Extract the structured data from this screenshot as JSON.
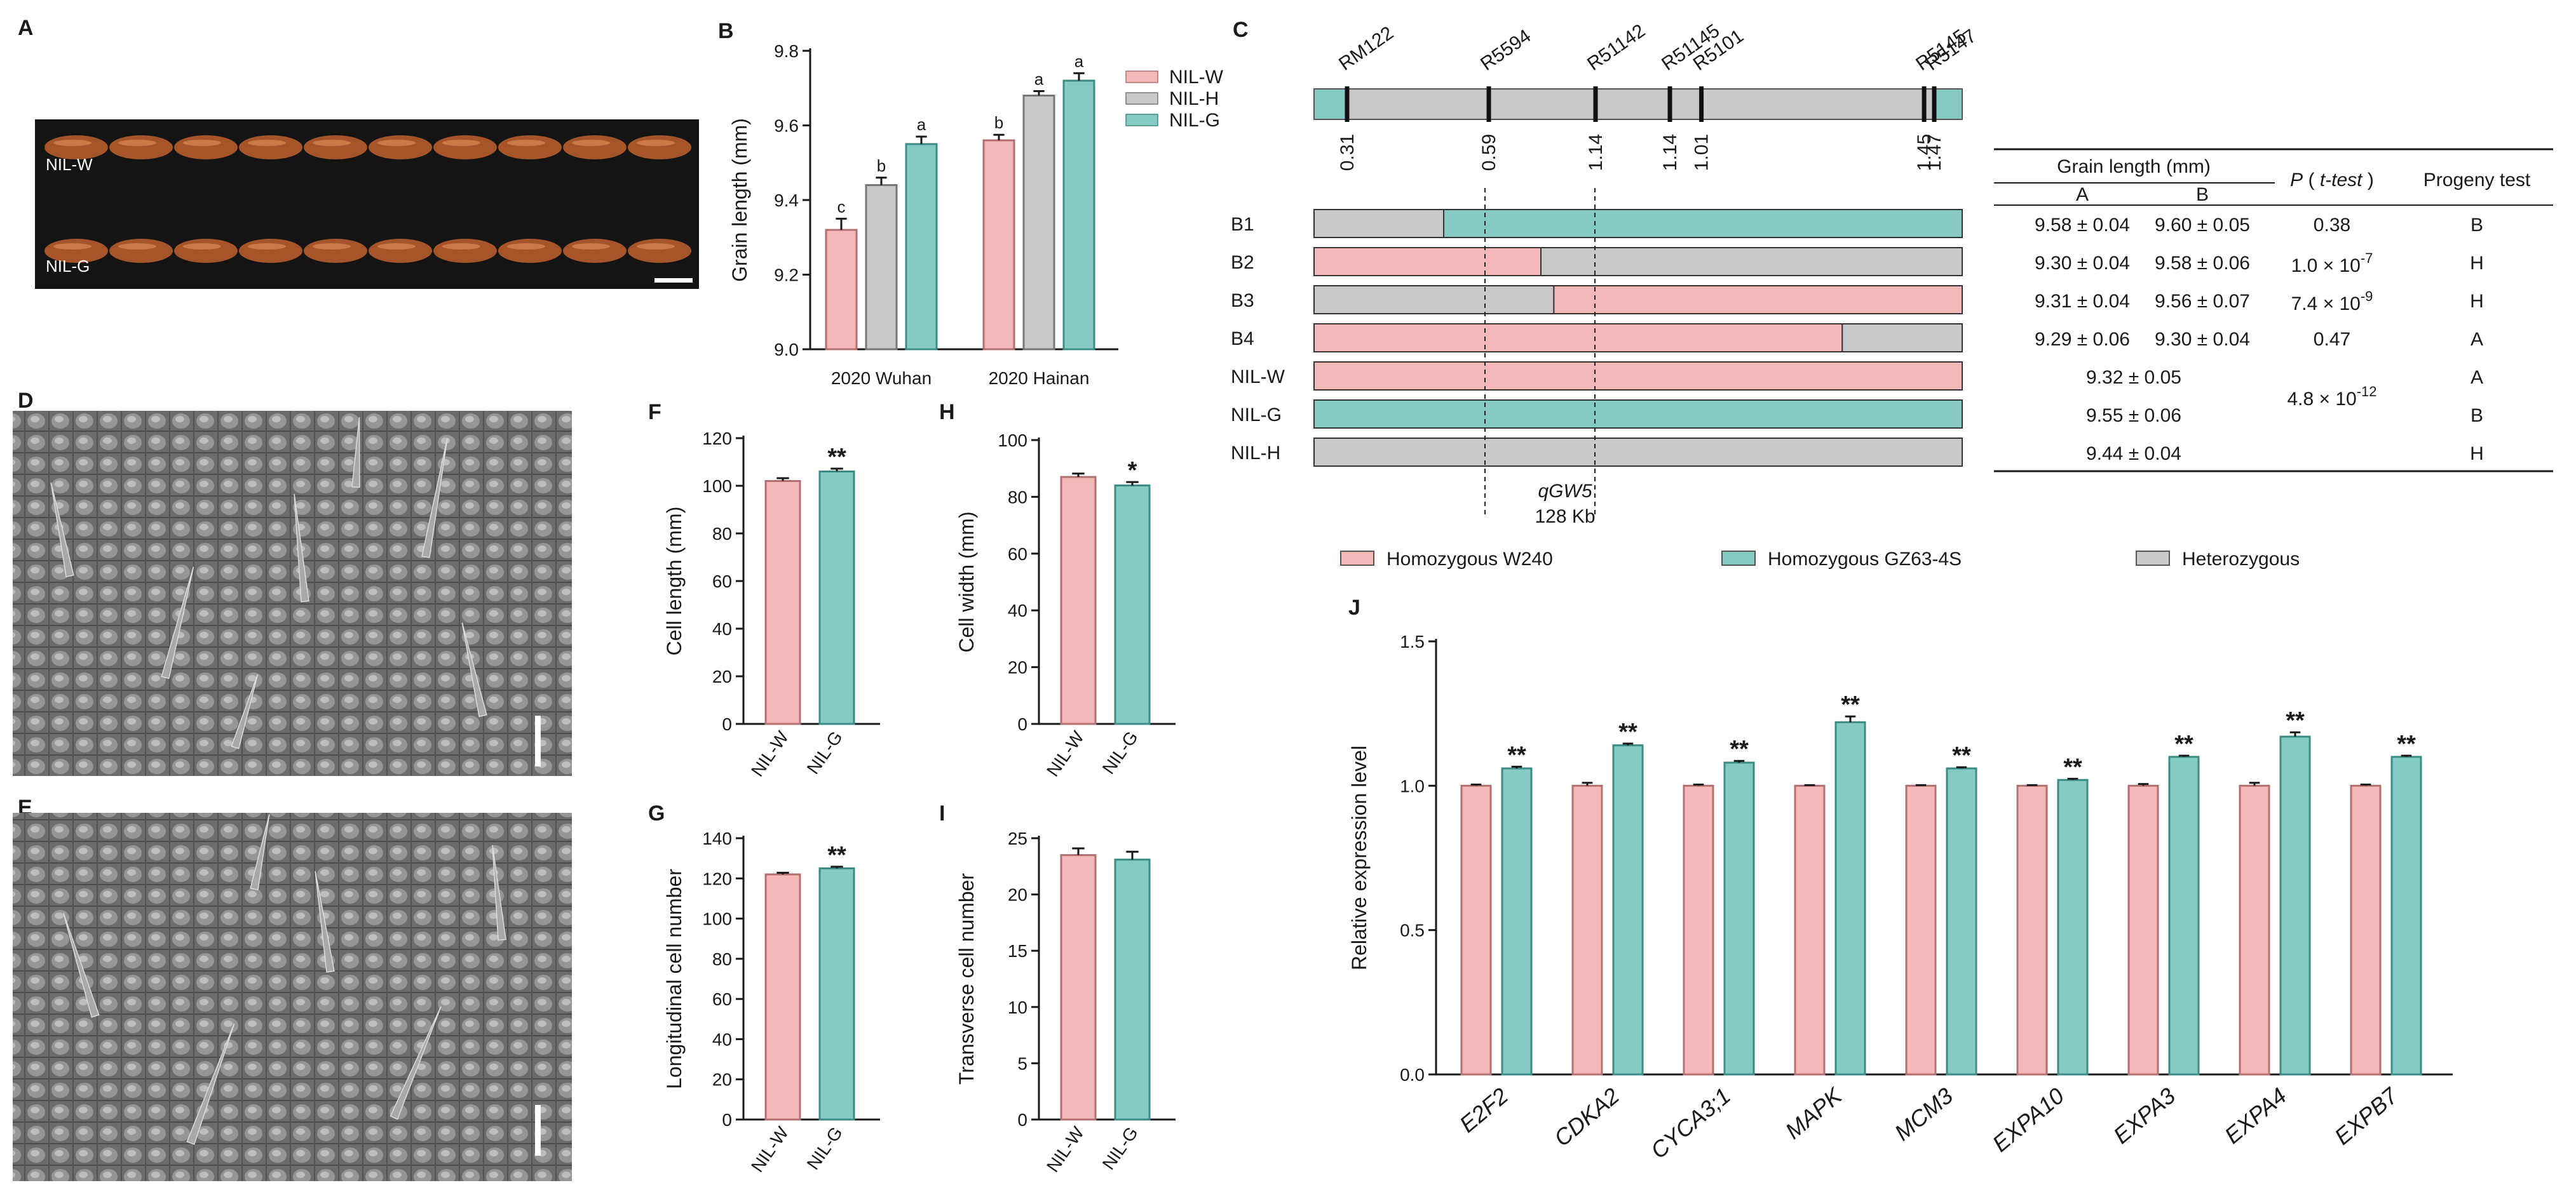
{
  "colors": {
    "pink": "#f5b8b8",
    "teal": "#86cbc3",
    "grey": "#c9c9c9",
    "photo_bg": "#141414",
    "grain": "#a6552a",
    "sem": "#6e6e6e"
  },
  "panel_letters": {
    "A": "A",
    "B": "B",
    "C": "C",
    "D": "D",
    "E": "E",
    "F": "F",
    "G": "G",
    "H": "H",
    "I": "I",
    "J": "J"
  },
  "panel_a": {
    "label_top": "NIL-W",
    "label_bottom": "NIL-G"
  },
  "chart_data": [
    {
      "id": "B",
      "type": "bar",
      "title": "",
      "categories": [
        "2020 Wuhan",
        "2020 Hainan"
      ],
      "series": [
        {
          "name": "NIL-W",
          "values": [
            9.32,
            9.56
          ],
          "errors": [
            0.03,
            0.015
          ],
          "letters": [
            "c",
            "b"
          ]
        },
        {
          "name": "NIL-H",
          "values": [
            9.44,
            9.68
          ],
          "errors": [
            0.02,
            0.012
          ],
          "letters": [
            "b",
            "a"
          ]
        },
        {
          "name": "NIL-G",
          "values": [
            9.55,
            9.72
          ],
          "errors": [
            0.02,
            0.02
          ],
          "letters": [
            "a",
            "a"
          ]
        }
      ],
      "xlabel": "",
      "ylabel": "Grain length (mm)",
      "ylim": [
        9.0,
        9.8
      ],
      "yticks": [
        "9.0",
        "9.2",
        "9.4",
        "9.6",
        "9.8"
      ],
      "legend": [
        "NIL-W",
        "NIL-H",
        "NIL-G"
      ]
    },
    {
      "id": "F",
      "type": "bar",
      "categories": [
        "NIL-W",
        "NIL-G"
      ],
      "values": [
        102,
        106
      ],
      "errors": [
        1.2,
        1.2
      ],
      "sig": [
        "",
        "**"
      ],
      "ylabel": "Cell length (mm)",
      "ylim": [
        0,
        120
      ],
      "yticks": [
        "0",
        "20",
        "40",
        "60",
        "80",
        "100",
        "120"
      ]
    },
    {
      "id": "H",
      "type": "bar",
      "categories": [
        "NIL-W",
        "NIL-G"
      ],
      "values": [
        87,
        84
      ],
      "errors": [
        1.2,
        1.2
      ],
      "sig": [
        "",
        "*"
      ],
      "ylabel": "Cell width (mm)",
      "ylim": [
        0,
        100
      ],
      "yticks": [
        "0",
        "20",
        "40",
        "60",
        "80",
        "100"
      ]
    },
    {
      "id": "G",
      "type": "bar",
      "categories": [
        "NIL-W",
        "NIL-G"
      ],
      "values": [
        122,
        125
      ],
      "errors": [
        0.8,
        0.8
      ],
      "sig": [
        "",
        "**"
      ],
      "ylabel": "Longitudinal cell number",
      "ylim": [
        0,
        140
      ],
      "yticks": [
        "0",
        "20",
        "40",
        "60",
        "80",
        "100",
        "120",
        "140"
      ]
    },
    {
      "id": "I",
      "type": "bar",
      "categories": [
        "NIL-W",
        "NIL-G"
      ],
      "values": [
        23.5,
        23.1
      ],
      "errors": [
        0.6,
        0.7
      ],
      "sig": [
        "",
        ""
      ],
      "ylabel": "Transverse cell number",
      "ylim": [
        0,
        25
      ],
      "yticks": [
        "0",
        "5",
        "10",
        "15",
        "20",
        "25"
      ]
    },
    {
      "id": "J",
      "type": "bar",
      "categories": [
        "E2F2",
        "CDKA2",
        "CYCA3;1",
        "MAPK",
        "MCM3",
        "EXPA10",
        "EXPA3",
        "EXPA4",
        "EXPB7"
      ],
      "series": [
        {
          "name": "NIL-W",
          "values": [
            1.0,
            1.0,
            1.0,
            1.0,
            1.0,
            1.0,
            1.0,
            1.0,
            1.0
          ],
          "errors": [
            0.004,
            0.01,
            0.004,
            0.002,
            0.002,
            0.002,
            0.006,
            0.01,
            0.004
          ]
        },
        {
          "name": "NIL-G",
          "values": [
            1.06,
            1.14,
            1.08,
            1.22,
            1.06,
            1.02,
            1.1,
            1.17,
            1.1
          ],
          "errors": [
            0.006,
            0.006,
            0.006,
            0.02,
            0.004,
            0.004,
            0.004,
            0.015,
            0.004
          ]
        }
      ],
      "sig": [
        "**",
        "**",
        "**",
        "**",
        "**",
        "**",
        "**",
        "**",
        "**"
      ],
      "xlabel": "",
      "ylabel": "Relative expression level",
      "ylim": [
        0,
        1.5
      ],
      "yticks": [
        "0.0",
        "0.5",
        "1.0",
        "1.5"
      ]
    }
  ],
  "panel_c": {
    "markers": [
      {
        "name": "RM122",
        "pos": "0.31",
        "x": 0.31
      },
      {
        "name": "R5594",
        "pos": "0.59",
        "x": 0.59
      },
      {
        "name": "R5101",
        "pos": "1.01",
        "x": 1.01
      },
      {
        "name": "R51142",
        "pos": "1.14",
        "x": 1.14
      },
      {
        "name": "R51145",
        "pos": "1.14",
        "x": 1.14
      },
      {
        "name": "R5145",
        "pos": "1.45",
        "x": 1.45
      },
      {
        "name": "R5147",
        "pos": "1.47",
        "x": 1.47
      }
    ],
    "rows": [
      {
        "name": "B1",
        "segments": [
          {
            "type": "het",
            "frac": 0.2
          },
          {
            "type": "gz",
            "frac": 0.8
          }
        ],
        "a": "9.58 ± 0.04",
        "b": "9.60 ± 0.05",
        "p": "0.38",
        "p_base": "",
        "p_exp": "",
        "prog": "B"
      },
      {
        "name": "B2",
        "segments": [
          {
            "type": "w240",
            "frac": 0.35
          },
          {
            "type": "het",
            "frac": 0.65
          }
        ],
        "a": "9.30 ± 0.04",
        "b": "9.58 ± 0.06",
        "p": "",
        "p_base": "1.0 × 10",
        "p_exp": "-7",
        "prog": "H"
      },
      {
        "name": "B3",
        "segments": [
          {
            "type": "het",
            "frac": 0.37
          },
          {
            "type": "w240",
            "frac": 0.63
          }
        ],
        "a": "9.31 ± 0.04",
        "b": "9.56 ± 0.07",
        "p": "",
        "p_base": "7.4 × 10",
        "p_exp": "-9",
        "prog": "H"
      },
      {
        "name": "B4",
        "segments": [
          {
            "type": "w240",
            "frac": 0.815
          },
          {
            "type": "het",
            "frac": 0.185
          }
        ],
        "a": "9.29 ± 0.06",
        "b": "9.30 ± 0.04",
        "p": "0.47",
        "p_base": "",
        "p_exp": "",
        "prog": "A"
      },
      {
        "name": "NIL-W",
        "segments": [
          {
            "type": "w240",
            "frac": 1.0
          }
        ],
        "single": "9.32 ± 0.05",
        "prog": "A"
      },
      {
        "name": "NIL-G",
        "segments": [
          {
            "type": "gz",
            "frac": 1.0
          }
        ],
        "single": "9.55 ± 0.06",
        "prog": "B"
      },
      {
        "name": "NIL-H",
        "segments": [
          {
            "type": "het",
            "frac": 1.0
          }
        ],
        "single": "9.44 ± 0.04",
        "prog": "H"
      }
    ],
    "nil_p_base": "4.8 × 10",
    "nil_p_exp": "-12",
    "table_header": {
      "grain_length": "Grain length (mm)",
      "col_a": "A",
      "col_b": "B",
      "p_label": "P",
      "p_test": "t-test",
      "progeny": "Progeny test"
    },
    "qgw5_label": "qGW5",
    "qgw5_size": "128 Kb",
    "legend": [
      {
        "type": "w240",
        "label": "Homozygous W240"
      },
      {
        "type": "gz",
        "label": "Homozygous GZ63-4S"
      },
      {
        "type": "het",
        "label": "Heterozygous"
      }
    ]
  }
}
